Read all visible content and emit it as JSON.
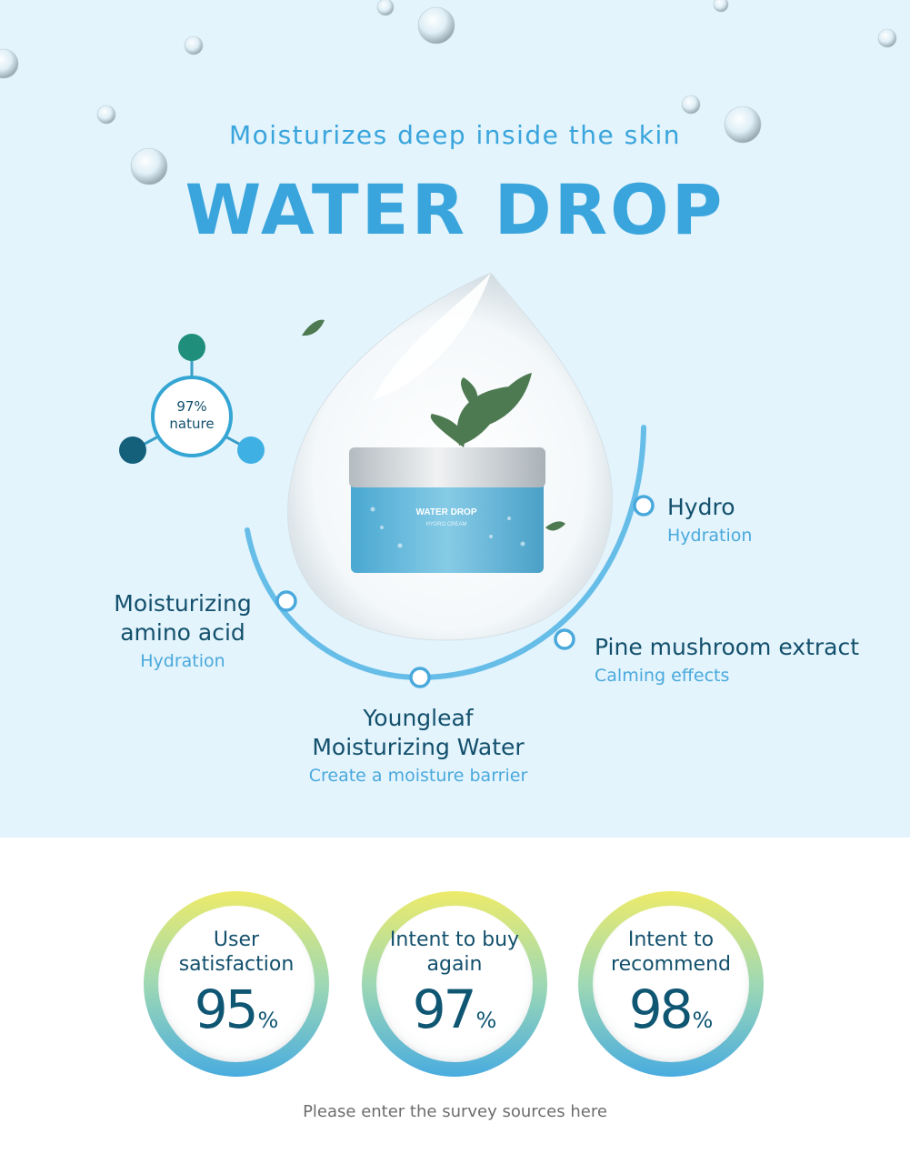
{
  "hero": {
    "subtitle": "Moisturizes deep inside the skin",
    "title": "WATER DROP"
  },
  "product": {
    "brand": "WATER DROP",
    "name": "HYDRO CREAM"
  },
  "badge": {
    "line1": "97%",
    "line2": "nature"
  },
  "ingredients": [
    {
      "title": "Hydro",
      "subtitle": "Hydration"
    },
    {
      "title": "Moisturizing amino acid",
      "subtitle": "Hydration"
    },
    {
      "title": "Pine mushroom extract",
      "subtitle": "Calming effects"
    },
    {
      "title": "Youngleaf Moisturizing Water",
      "subtitle": "Create a moisture barrier"
    }
  ],
  "stats": [
    {
      "label": "User satisfaction",
      "value": "95",
      "unit": "%"
    },
    {
      "label": "Intent to buy again",
      "value": "97",
      "unit": "%"
    },
    {
      "label": "Intent to recommend",
      "value": "98",
      "unit": "%"
    }
  ],
  "footer": {
    "source_note": "Please enter the survey sources here"
  },
  "colors": {
    "accent": "#3aa5dc",
    "text_dark": "#13506c",
    "hero_bg": "#e3f4fd"
  }
}
